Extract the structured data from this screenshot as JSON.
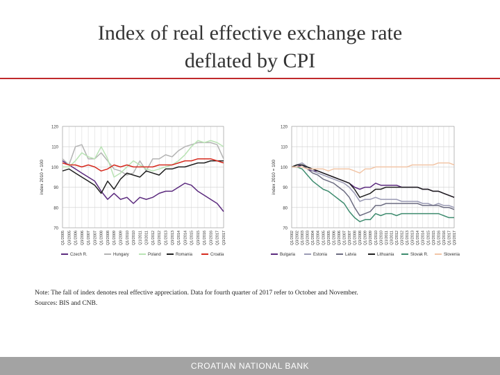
{
  "slide": {
    "title_line1": "Index of real effective exchange rate",
    "title_line2": "deflated by CPI"
  },
  "note": {
    "line1": "Note: The fall of index denotes real effective appreciation. Data for fourth quarter of 2017 refer to October and November.",
    "line2": "Sources: BIS and CNB."
  },
  "footer": {
    "text": "CROATIAN NATIONAL BANK"
  },
  "colors": {
    "czech_r": "#5b2a7e",
    "hungary": "#b3b3b3",
    "poland": "#b9e3b4",
    "romania": "#1f1f1f",
    "croatia": "#d62a1e",
    "bulgaria": "#5b2a7e",
    "estonia": "#9a9ab4",
    "latvia": "#6b6b80",
    "lithuania": "#1f1f1f",
    "slovak_r": "#3d8b6e",
    "slovenia": "#f2c5a6"
  },
  "chart_data": [
    {
      "type": "line",
      "ylabel": "index 2010 = 100",
      "ylim": [
        70,
        120
      ],
      "yticks": [
        70,
        80,
        90,
        100,
        110,
        120
      ],
      "x": [
        "Q1/2005",
        "Q3/2005",
        "Q1/2006",
        "Q3/2006",
        "Q1/2007",
        "Q3/2007",
        "Q1/2008",
        "Q3/2008",
        "Q1/2009",
        "Q3/2009",
        "Q1/2010",
        "Q3/2010",
        "Q1/2011",
        "Q3/2011",
        "Q1/2012",
        "Q3/2012",
        "Q1/2013",
        "Q3/2013",
        "Q1/2014",
        "Q3/2014",
        "Q1/2015",
        "Q3/2015",
        "Q1/2016",
        "Q3/2016",
        "Q1/2017",
        "Q3/2017"
      ],
      "series": [
        {
          "name": "Czech R.",
          "color_key": "czech_r",
          "values": [
            103,
            101,
            99,
            97,
            95,
            93,
            88,
            84,
            87,
            84,
            85,
            82,
            85,
            84,
            85,
            87,
            88,
            88,
            90,
            92,
            91,
            88,
            86,
            84,
            82,
            78
          ]
        },
        {
          "name": "Hungary",
          "color_key": "hungary",
          "values": [
            104,
            101,
            110,
            111,
            104,
            104,
            107,
            103,
            99,
            98,
            96,
            97,
            103,
            98,
            104,
            104,
            106,
            105,
            108,
            110,
            111,
            112,
            112,
            112,
            111,
            104
          ]
        },
        {
          "name": "Poland",
          "color_key": "poland",
          "values": [
            100,
            100,
            103,
            107,
            105,
            104,
            110,
            104,
            95,
            97,
            100,
            103,
            101,
            99,
            98,
            99,
            100,
            101,
            103,
            106,
            110,
            113,
            112,
            113,
            112,
            110
          ]
        },
        {
          "name": "Romania",
          "color_key": "romania",
          "values": [
            98,
            99,
            97,
            95,
            93,
            91,
            87,
            93,
            89,
            94,
            97,
            96,
            95,
            98,
            97,
            96,
            99,
            99,
            100,
            100,
            101,
            102,
            102,
            103,
            103,
            103
          ]
        },
        {
          "name": "Croatia",
          "color_key": "croatia",
          "values": [
            102,
            101,
            101,
            100,
            101,
            100,
            98,
            99,
            101,
            100,
            101,
            100,
            100,
            100,
            100,
            101,
            101,
            101,
            102,
            103,
            103,
            104,
            104,
            104,
            103,
            102
          ]
        }
      ]
    },
    {
      "type": "line",
      "ylabel": "index 2010 = 100",
      "ylim": [
        70,
        120
      ],
      "yticks": [
        70,
        80,
        90,
        100,
        110,
        120
      ],
      "x": [
        "Q1/2002",
        "Q3/2002",
        "Q1/2003",
        "Q3/2003",
        "Q1/2004",
        "Q3/2004",
        "Q1/2005",
        "Q3/2005",
        "Q1/2006",
        "Q3/2006",
        "Q1/2007",
        "Q3/2007",
        "Q1/2008",
        "Q3/2008",
        "Q1/2009",
        "Q3/2009",
        "Q1/2010",
        "Q3/2010",
        "Q1/2011",
        "Q3/2011",
        "Q1/2012",
        "Q3/2012",
        "Q1/2013",
        "Q3/2013",
        "Q1/2014",
        "Q3/2014",
        "Q1/2015",
        "Q3/2015",
        "Q1/2016",
        "Q3/2016",
        "Q1/2017",
        "Q3/2017"
      ],
      "series": [
        {
          "name": "Bulgaria",
          "color_key": "bulgaria",
          "values": [
            100,
            100,
            101,
            99,
            98,
            98,
            97,
            96,
            95,
            94,
            93,
            92,
            90,
            89,
            90,
            90,
            92,
            91,
            91,
            91,
            91,
            90,
            90,
            90,
            90,
            89,
            89,
            88,
            88,
            87,
            86,
            85
          ]
        },
        {
          "name": "Estonia",
          "color_key": "estonia",
          "values": [
            100,
            101,
            102,
            100,
            98,
            97,
            96,
            95,
            94,
            93,
            92,
            90,
            87,
            83,
            84,
            84,
            85,
            84,
            84,
            84,
            84,
            83,
            83,
            83,
            83,
            82,
            82,
            81,
            82,
            81,
            81,
            80
          ]
        },
        {
          "name": "Latvia",
          "color_key": "latvia",
          "values": [
            100,
            101,
            101,
            99,
            97,
            96,
            94,
            93,
            92,
            90,
            88,
            85,
            80,
            76,
            77,
            78,
            81,
            81,
            82,
            82,
            82,
            82,
            82,
            82,
            82,
            81,
            81,
            81,
            81,
            80,
            80,
            79
          ]
        },
        {
          "name": "Lithuania",
          "color_key": "lithuania",
          "values": [
            100,
            101,
            101,
            100,
            99,
            98,
            97,
            96,
            95,
            94,
            93,
            92,
            89,
            85,
            86,
            87,
            89,
            89,
            90,
            90,
            90,
            90,
            90,
            90,
            90,
            89,
            89,
            88,
            88,
            87,
            86,
            85
          ]
        },
        {
          "name": "Slovak R.",
          "color_key": "slovak_r",
          "values": [
            100,
            100,
            99,
            96,
            93,
            91,
            89,
            88,
            86,
            84,
            82,
            78,
            75,
            73,
            74,
            74,
            77,
            76,
            77,
            77,
            76,
            77,
            77,
            77,
            77,
            77,
            77,
            77,
            77,
            76,
            75,
            75
          ]
        },
        {
          "name": "Slovenia",
          "color_key": "slovenia",
          "values": [
            100,
            100,
            100,
            99,
            99,
            99,
            99,
            98,
            99,
            99,
            99,
            99,
            98,
            97,
            99,
            99,
            100,
            100,
            100,
            100,
            100,
            100,
            100,
            101,
            101,
            101,
            101,
            101,
            102,
            102,
            102,
            101
          ]
        }
      ]
    }
  ]
}
